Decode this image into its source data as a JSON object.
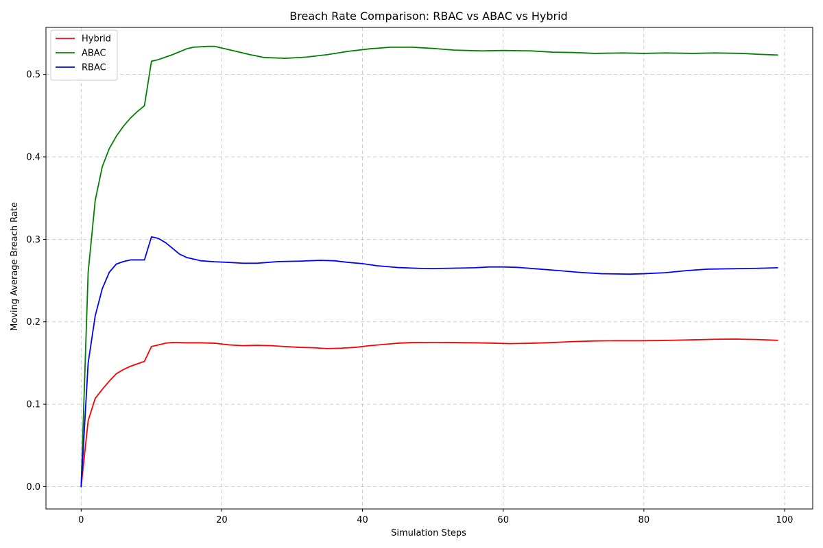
{
  "chart_data": {
    "type": "line",
    "title": "Breach Rate Comparison: RBAC vs ABAC vs Hybrid",
    "xlabel": "Simulation Steps",
    "ylabel": "Moving Average Breach Rate",
    "xlim": [
      -5,
      104
    ],
    "ylim": [
      -0.027,
      0.557
    ],
    "xticks": [
      0,
      20,
      40,
      60,
      80,
      100
    ],
    "yticks": [
      0.0,
      0.1,
      0.2,
      0.3,
      0.4,
      0.5
    ],
    "ytick_labels": [
      "0.0",
      "0.1",
      "0.2",
      "0.3",
      "0.4",
      "0.5"
    ],
    "grid": true,
    "legend_position": "top-left",
    "series": [
      {
        "name": "Hybrid",
        "color": "#ff0000",
        "points": [
          [
            0,
            0.0
          ],
          [
            1,
            0.08
          ],
          [
            2,
            0.107
          ],
          [
            3,
            0.118
          ],
          [
            4,
            0.128
          ],
          [
            5,
            0.137
          ],
          [
            6,
            0.142
          ],
          [
            7,
            0.146
          ],
          [
            8,
            0.149
          ],
          [
            9,
            0.152
          ],
          [
            10,
            0.17
          ],
          [
            11,
            0.172
          ],
          [
            12,
            0.174
          ],
          [
            13,
            0.175
          ],
          [
            15,
            0.1745
          ],
          [
            17,
            0.1745
          ],
          [
            19,
            0.174
          ],
          [
            21,
            0.172
          ],
          [
            23,
            0.171
          ],
          [
            25,
            0.1715
          ],
          [
            27,
            0.171
          ],
          [
            29,
            0.17
          ],
          [
            31,
            0.169
          ],
          [
            33,
            0.1685
          ],
          [
            35,
            0.1675
          ],
          [
            37,
            0.168
          ],
          [
            39,
            0.169
          ],
          [
            41,
            0.171
          ],
          [
            43,
            0.1725
          ],
          [
            45,
            0.174
          ],
          [
            47,
            0.1748
          ],
          [
            50,
            0.175
          ],
          [
            53,
            0.1748
          ],
          [
            56,
            0.1745
          ],
          [
            58,
            0.1742
          ],
          [
            61,
            0.1735
          ],
          [
            64,
            0.174
          ],
          [
            67,
            0.1748
          ],
          [
            70,
            0.176
          ],
          [
            73,
            0.1768
          ],
          [
            76,
            0.177
          ],
          [
            79,
            0.177
          ],
          [
            82,
            0.1772
          ],
          [
            85,
            0.1778
          ],
          [
            88,
            0.1783
          ],
          [
            90,
            0.1788
          ],
          [
            93,
            0.179
          ],
          [
            96,
            0.1785
          ],
          [
            99,
            0.1775
          ]
        ]
      },
      {
        "name": "ABAC",
        "color": "#008000",
        "points": [
          [
            0,
            0.0
          ],
          [
            1,
            0.26
          ],
          [
            2,
            0.347
          ],
          [
            3,
            0.388
          ],
          [
            4,
            0.41
          ],
          [
            5,
            0.425
          ],
          [
            6,
            0.437
          ],
          [
            7,
            0.447
          ],
          [
            8,
            0.455
          ],
          [
            9,
            0.462
          ],
          [
            10,
            0.516
          ],
          [
            11,
            0.518
          ],
          [
            13,
            0.524
          ],
          [
            15,
            0.531
          ],
          [
            16,
            0.533
          ],
          [
            18,
            0.534
          ],
          [
            19,
            0.534
          ],
          [
            20,
            0.532
          ],
          [
            22,
            0.528
          ],
          [
            24,
            0.524
          ],
          [
            26,
            0.5205
          ],
          [
            29,
            0.5195
          ],
          [
            32,
            0.521
          ],
          [
            35,
            0.524
          ],
          [
            38,
            0.528
          ],
          [
            41,
            0.531
          ],
          [
            44,
            0.533
          ],
          [
            47,
            0.533
          ],
          [
            50,
            0.5315
          ],
          [
            53,
            0.5295
          ],
          [
            57,
            0.5285
          ],
          [
            60,
            0.529
          ],
          [
            64,
            0.5285
          ],
          [
            67,
            0.527
          ],
          [
            70,
            0.5265
          ],
          [
            73,
            0.5255
          ],
          [
            77,
            0.526
          ],
          [
            80,
            0.5255
          ],
          [
            83,
            0.526
          ],
          [
            87,
            0.5255
          ],
          [
            90,
            0.526
          ],
          [
            94,
            0.5255
          ],
          [
            96,
            0.5245
          ],
          [
            99,
            0.5235
          ]
        ]
      },
      {
        "name": "RBAC",
        "color": "#0000ff",
        "points": [
          [
            0,
            0.0
          ],
          [
            1,
            0.15
          ],
          [
            2,
            0.207
          ],
          [
            3,
            0.24
          ],
          [
            4,
            0.26
          ],
          [
            5,
            0.27
          ],
          [
            6,
            0.273
          ],
          [
            7,
            0.275
          ],
          [
            8,
            0.275
          ],
          [
            9,
            0.275
          ],
          [
            10,
            0.303
          ],
          [
            11,
            0.301
          ],
          [
            12,
            0.296
          ],
          [
            13,
            0.289
          ],
          [
            14,
            0.282
          ],
          [
            15,
            0.278
          ],
          [
            17,
            0.274
          ],
          [
            19,
            0.2728
          ],
          [
            21,
            0.272
          ],
          [
            23,
            0.271
          ],
          [
            25,
            0.271
          ],
          [
            28,
            0.273
          ],
          [
            31,
            0.2735
          ],
          [
            34,
            0.2745
          ],
          [
            36,
            0.274
          ],
          [
            38,
            0.272
          ],
          [
            40,
            0.2705
          ],
          [
            42,
            0.268
          ],
          [
            45,
            0.2658
          ],
          [
            48,
            0.2648
          ],
          [
            50,
            0.2645
          ],
          [
            53,
            0.265
          ],
          [
            56,
            0.2655
          ],
          [
            58,
            0.2665
          ],
          [
            60,
            0.2665
          ],
          [
            62,
            0.266
          ],
          [
            65,
            0.264
          ],
          [
            68,
            0.262
          ],
          [
            71,
            0.2598
          ],
          [
            74,
            0.2583
          ],
          [
            78,
            0.2578
          ],
          [
            80,
            0.2583
          ],
          [
            83,
            0.2595
          ],
          [
            86,
            0.262
          ],
          [
            89,
            0.2638
          ],
          [
            92,
            0.2643
          ],
          [
            96,
            0.2648
          ],
          [
            99,
            0.2655
          ]
        ]
      }
    ]
  }
}
